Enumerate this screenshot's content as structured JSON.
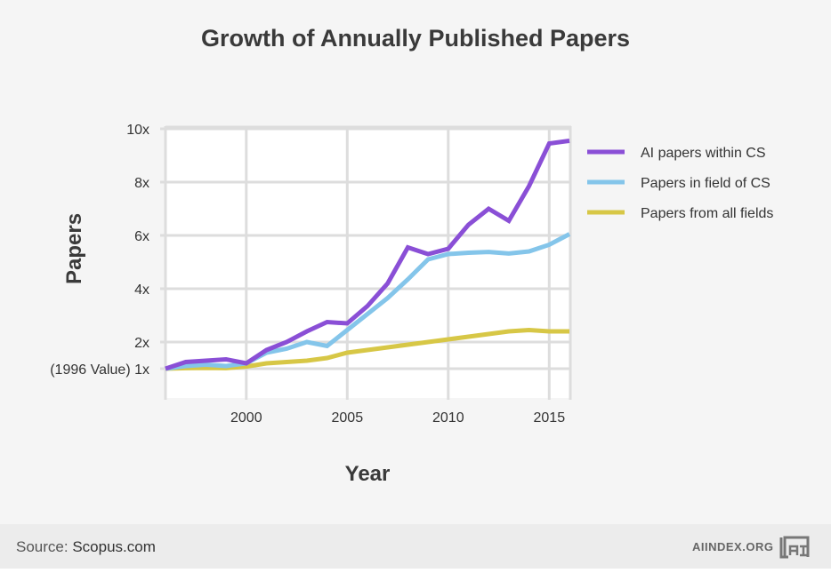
{
  "chart_data": {
    "type": "line",
    "title": "Growth of Annually Published Papers",
    "xlabel": "Year",
    "ylabel": "Papers",
    "x": [
      1996,
      1997,
      1998,
      1999,
      2000,
      2001,
      2002,
      2003,
      2004,
      2005,
      2006,
      2007,
      2008,
      2009,
      2010,
      2011,
      2012,
      2013,
      2014,
      2015,
      2016
    ],
    "xlim": [
      1996,
      2016
    ],
    "ylim": [
      0,
      10
    ],
    "x_ticks": [
      2000,
      2005,
      2010,
      2015
    ],
    "y_ticks": [
      {
        "value": 10,
        "label": "10x"
      },
      {
        "value": 8,
        "label": "8x"
      },
      {
        "value": 6,
        "label": "6x"
      },
      {
        "value": 4,
        "label": "4x"
      },
      {
        "value": 2,
        "label": "2x"
      },
      {
        "value": 1,
        "label": "(1996 Value) 1x"
      }
    ],
    "grid": true,
    "legend_position": "right",
    "series": [
      {
        "name": "AI papers within CS",
        "color": "#8a4fd6",
        "values": [
          1.0,
          1.25,
          1.3,
          1.35,
          1.2,
          1.7,
          2.0,
          2.4,
          2.75,
          2.7,
          3.35,
          4.2,
          5.55,
          5.3,
          5.5,
          6.4,
          7.0,
          6.55,
          7.85,
          9.45,
          9.55
        ]
      },
      {
        "name": "Papers in field of CS",
        "color": "#84c5ea",
        "values": [
          1.0,
          1.1,
          1.15,
          1.1,
          1.2,
          1.6,
          1.75,
          2.0,
          1.85,
          2.45,
          3.05,
          3.65,
          4.35,
          5.1,
          5.3,
          5.35,
          5.38,
          5.32,
          5.4,
          5.65,
          6.05
        ]
      },
      {
        "name": "Papers from all fields",
        "color": "#d7c746",
        "values": [
          1.0,
          1.02,
          1.03,
          1.02,
          1.08,
          1.2,
          1.25,
          1.3,
          1.4,
          1.6,
          1.7,
          1.8,
          1.9,
          2.0,
          2.1,
          2.2,
          2.3,
          2.4,
          2.45,
          2.4,
          2.4
        ]
      }
    ]
  },
  "footer": {
    "source_prefix": "Source:",
    "source_name": "Scopus.com",
    "brand": "AIINDEX.ORG",
    "logo_icon": "ai-index-logo-icon"
  }
}
